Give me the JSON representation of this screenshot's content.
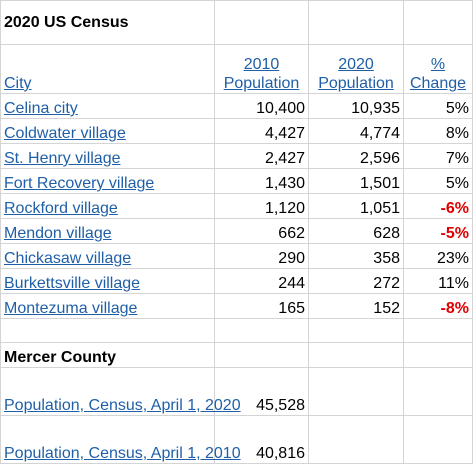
{
  "title": "2020 US Census",
  "headers": {
    "city": "City",
    "pop2010_line1": "2010",
    "pop2010_line2": "Population",
    "pop2020_line1": "2020",
    "pop2020_line2": "Population",
    "pct_line1": "%",
    "pct_line2": "Change"
  },
  "rows": [
    {
      "city": "Celina city",
      "pop2010": "10,400",
      "pop2020": "10,935",
      "change": "5%"
    },
    {
      "city": "Coldwater village",
      "pop2010": "4,427",
      "pop2020": "4,774",
      "change": "8%"
    },
    {
      "city": "St. Henry village",
      "pop2010": "2,427",
      "pop2020": "2,596",
      "change": "7%"
    },
    {
      "city": "Fort Recovery village",
      "pop2010": "1,430",
      "pop2020": "1,501",
      "change": "5%"
    },
    {
      "city": "Rockford village",
      "pop2010": "1,120",
      "pop2020": "1,051",
      "change": "-6%"
    },
    {
      "city": "Mendon village",
      "pop2010": "662",
      "pop2020": "628",
      "change": "-5%"
    },
    {
      "city": "Chickasaw village",
      "pop2010": "290",
      "pop2020": "358",
      "change": "23%"
    },
    {
      "city": "Burkettsville village",
      "pop2010": "244",
      "pop2020": "272",
      "change": "11%"
    },
    {
      "city": "Montezuma village",
      "pop2010": "165",
      "pop2020": "152",
      "change": "-8%"
    }
  ],
  "county": {
    "heading": "Mercer County",
    "rows": [
      {
        "label": "Population, Census, April 1, 2020",
        "value": "45,528"
      },
      {
        "label": "Population, Census, April 1, 2010",
        "value": "40,816"
      }
    ]
  },
  "colors": {
    "link": "#1f5fa8",
    "negative": "#e00000",
    "grid": "#d4d4d4"
  }
}
